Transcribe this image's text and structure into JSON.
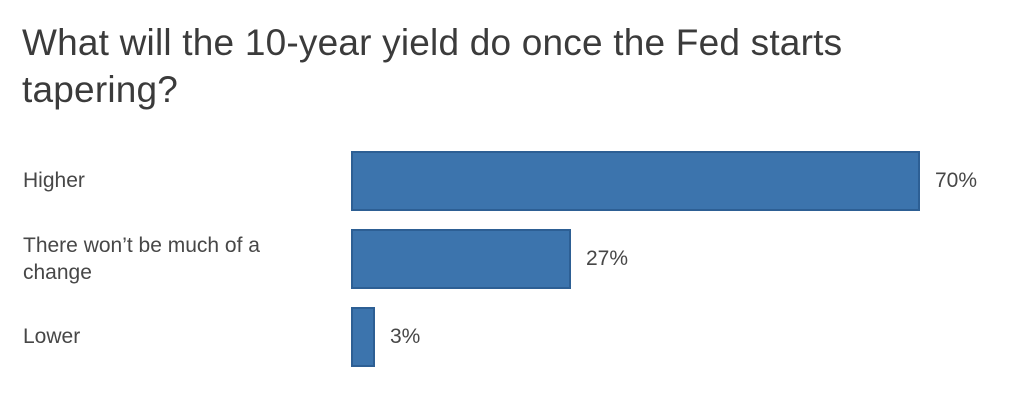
{
  "chart_data": {
    "type": "bar",
    "orientation": "horizontal",
    "title": "What will the 10-year yield do once the Fed starts tapering?",
    "title_lines": [
      "What will the 10-year yield do once the Fed starts",
      "tapering?"
    ],
    "categories": [
      "Higher",
      "There won’t be much of a change",
      "Lower"
    ],
    "values": [
      70,
      27,
      3
    ],
    "value_labels": [
      "70%",
      "27%",
      "3%"
    ],
    "xlabel": "",
    "ylabel": "",
    "xlim": [
      0,
      100
    ],
    "grid": false,
    "legend": "none",
    "colors": {
      "bar_fill": "#3c74ad",
      "bar_border": "#2d5f94",
      "text": "#474747",
      "title_text": "#3b3b3b",
      "background": "#ffffff"
    }
  }
}
